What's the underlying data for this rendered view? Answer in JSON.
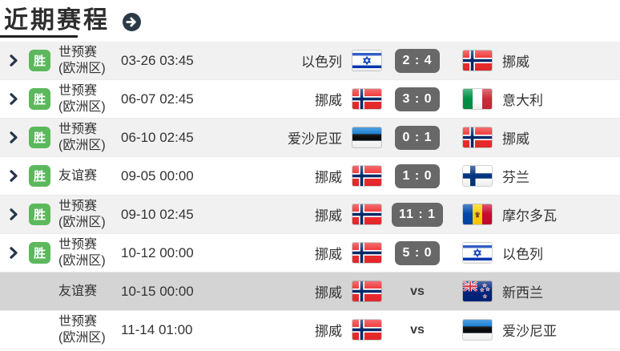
{
  "header": {
    "title": "近期赛程",
    "more_icon": "arrow-right-circle"
  },
  "labels": {
    "win": "胜",
    "vs": "vs"
  },
  "colors": {
    "text": "#333333",
    "win_badge": "#5cb85c",
    "score_badge_bg": "#686868",
    "row_alt_bg": "#f1f1f1",
    "row_highlight_bg": "#d4d4d4",
    "chevron": "#27364b"
  },
  "matches": [
    {
      "result": "win",
      "competition": "世预赛(欧洲区)",
      "datetime": "03-26 03:45",
      "home_team": "以色列",
      "home_flag": "israel",
      "score": "2 : 4",
      "away_team": "挪威",
      "away_flag": "norway",
      "status": "finished",
      "highlighted": false
    },
    {
      "result": "win",
      "competition": "世预赛(欧洲区)",
      "datetime": "06-07 02:45",
      "home_team": "挪威",
      "home_flag": "norway",
      "score": "3 : 0",
      "away_team": "意大利",
      "away_flag": "italy",
      "status": "finished",
      "highlighted": false
    },
    {
      "result": "win",
      "competition": "世预赛(欧洲区)",
      "datetime": "06-10 02:45",
      "home_team": "爱沙尼亚",
      "home_flag": "estonia",
      "score": "0 : 1",
      "away_team": "挪威",
      "away_flag": "norway",
      "status": "finished",
      "highlighted": false
    },
    {
      "result": "win",
      "competition": "友谊赛",
      "datetime": "09-05 00:00",
      "home_team": "挪威",
      "home_flag": "norway",
      "score": "1 : 0",
      "away_team": "芬兰",
      "away_flag": "finland",
      "status": "finished",
      "highlighted": false
    },
    {
      "result": "win",
      "competition": "世预赛(欧洲区)",
      "datetime": "09-10 02:45",
      "home_team": "挪威",
      "home_flag": "norway",
      "score": "11 : 1",
      "away_team": "摩尔多瓦",
      "away_flag": "moldova",
      "status": "finished",
      "highlighted": false
    },
    {
      "result": "win",
      "competition": "世预赛(欧洲区)",
      "datetime": "10-12 00:00",
      "home_team": "挪威",
      "home_flag": "norway",
      "score": "5 : 0",
      "away_team": "以色列",
      "away_flag": "israel",
      "status": "finished",
      "highlighted": false
    },
    {
      "result": null,
      "competition": "友谊赛",
      "datetime": "10-15 00:00",
      "home_team": "挪威",
      "home_flag": "norway",
      "score": null,
      "away_team": "新西兰",
      "away_flag": "new_zealand",
      "status": "upcoming",
      "highlighted": true
    },
    {
      "result": null,
      "competition": "世预赛(欧洲区)",
      "datetime": "11-14 01:00",
      "home_team": "挪威",
      "home_flag": "norway",
      "score": null,
      "away_team": "爱沙尼亚",
      "away_flag": "estonia",
      "status": "upcoming",
      "highlighted": false
    }
  ]
}
